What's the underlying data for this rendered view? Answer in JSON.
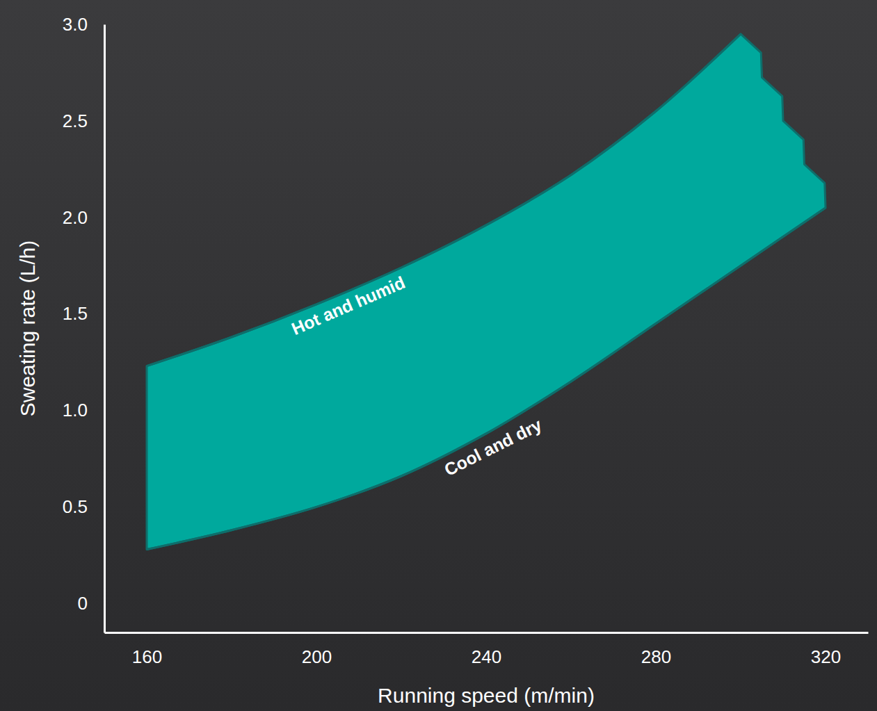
{
  "chart_data": {
    "type": "band",
    "x_label": "Running speed (m/min)",
    "y_label": "Sweating rate (L/h)",
    "series": [
      {
        "name": "Hot and humid",
        "color": "#0e6e6b",
        "x": [
          160,
          180,
          200,
          220,
          240,
          260,
          280,
          300
        ],
        "values": [
          1.23,
          1.38,
          1.55,
          1.74,
          1.96,
          2.22,
          2.55,
          2.95
        ]
      },
      {
        "name": "Cool and dry",
        "color": "#0e6e6b",
        "x": [
          160,
          180,
          200,
          220,
          240,
          260,
          280,
          300,
          320
        ],
        "values": [
          0.28,
          0.38,
          0.5,
          0.66,
          0.88,
          1.15,
          1.45,
          1.75,
          2.05
        ]
      }
    ],
    "color": "#00a99d",
    "xlim": [
      150,
      330
    ],
    "xticks": [
      160,
      200,
      240,
      280,
      320
    ],
    "ylim": [
      -0.15,
      3.0
    ],
    "yticks": [
      0,
      0.5,
      {
        "value": 1.0,
        "label": "1.0"
      },
      1.5,
      {
        "value": 2.0,
        "label": "2.0"
      },
      2.5,
      {
        "value": 3.0,
        "label": "3.0"
      }
    ],
    "grid": false
  }
}
